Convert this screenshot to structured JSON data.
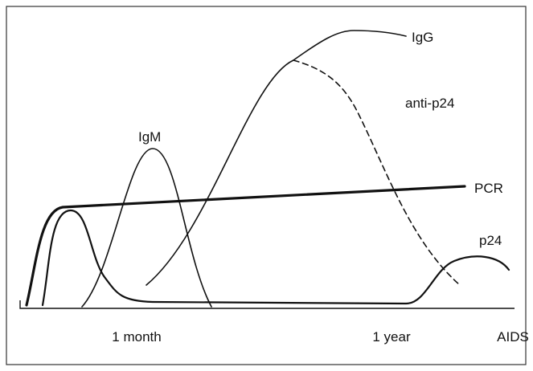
{
  "curves": [
    {
      "label": "IgG"
    },
    {
      "label": "anti-p24"
    },
    {
      "label": "IgM"
    },
    {
      "label": "PCR"
    },
    {
      "label": "p24"
    }
  ],
  "axis": {
    "ticks": [
      "1 month",
      "1 year",
      "AIDS"
    ]
  }
}
